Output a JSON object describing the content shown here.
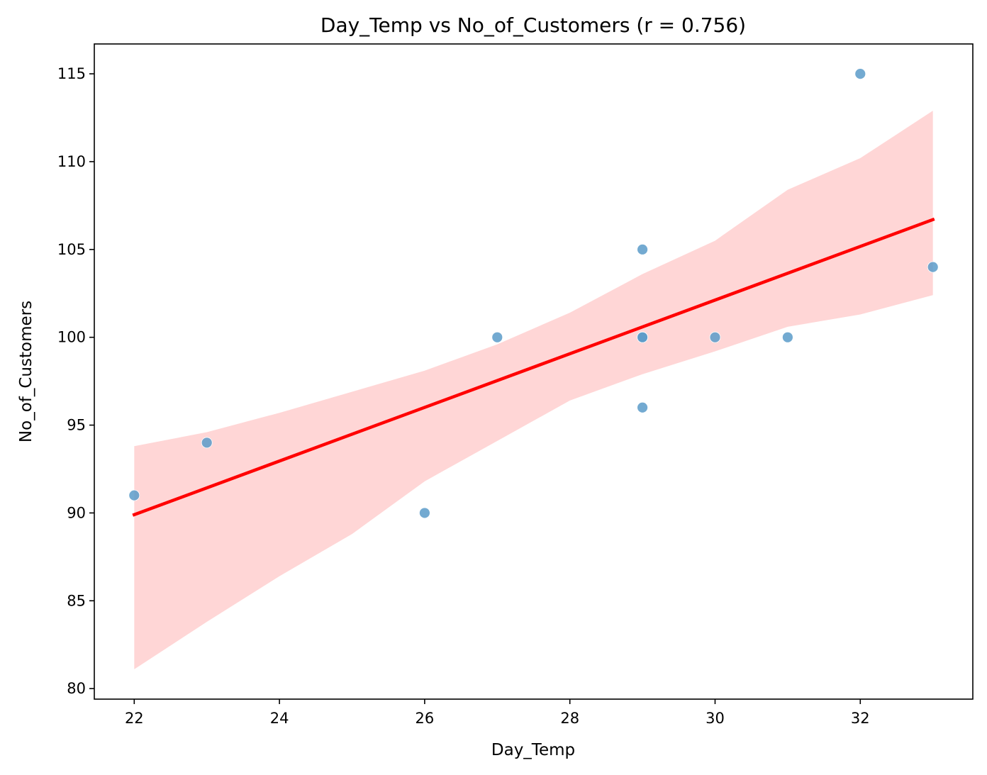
{
  "chart_data": {
    "type": "scatter",
    "title": "Day_Temp vs No_of_Customers (r = 0.756)",
    "xlabel": "Day_Temp",
    "ylabel": "No_of_Customers",
    "xlim": [
      21.45,
      33.55
    ],
    "ylim": [
      79.4,
      116.7
    ],
    "xticks": [
      22,
      24,
      26,
      28,
      30,
      32
    ],
    "yticks": [
      80,
      85,
      90,
      95,
      100,
      105,
      110,
      115
    ],
    "grid": false,
    "points": [
      {
        "x": 22,
        "y": 91
      },
      {
        "x": 23,
        "y": 94
      },
      {
        "x": 26,
        "y": 90
      },
      {
        "x": 27,
        "y": 100
      },
      {
        "x": 29,
        "y": 105
      },
      {
        "x": 29,
        "y": 100
      },
      {
        "x": 29,
        "y": 100
      },
      {
        "x": 29,
        "y": 96
      },
      {
        "x": 30,
        "y": 100
      },
      {
        "x": 31,
        "y": 100
      },
      {
        "x": 32,
        "y": 115
      },
      {
        "x": 33,
        "y": 104
      }
    ],
    "regression_line": {
      "x": [
        22,
        33
      ],
      "y": [
        89.9,
        106.7
      ]
    },
    "confidence_band": {
      "x": [
        22,
        23,
        24,
        25,
        26,
        27,
        28,
        29,
        30,
        31,
        32,
        33
      ],
      "upper": [
        93.8,
        94.6,
        95.7,
        96.9,
        98.1,
        99.6,
        101.4,
        103.6,
        105.5,
        108.4,
        110.2,
        112.9
      ],
      "lower": [
        81.1,
        83.8,
        86.4,
        88.8,
        91.8,
        94.1,
        96.4,
        97.9,
        99.2,
        100.6,
        101.3,
        102.4
      ]
    },
    "colors": {
      "points": "#5b9bc9",
      "regression_line": "#ff0000",
      "confidence_band": "#ffcccc"
    }
  }
}
